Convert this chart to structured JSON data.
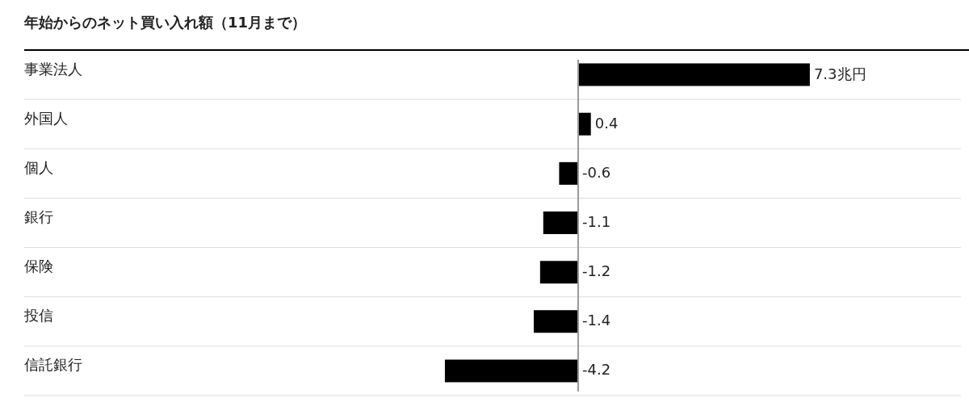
{
  "chart_data": {
    "type": "bar",
    "orientation": "horizontal",
    "title": "年始からのネット買い入れ額（11月まで）",
    "categories": [
      "事業法人",
      "外国人",
      "個人",
      "銀行",
      "保険",
      "投信",
      "信託銀行"
    ],
    "values": [
      7.3,
      0.4,
      -0.6,
      -1.1,
      -1.2,
      -1.4,
      -4.2
    ],
    "value_labels": [
      "7.3兆円",
      "0.4",
      "-0.6",
      "-1.1",
      "-1.2",
      "-1.4",
      "-4.2"
    ],
    "color": "#000000",
    "grid": "y",
    "tick_labels": "y"
  }
}
